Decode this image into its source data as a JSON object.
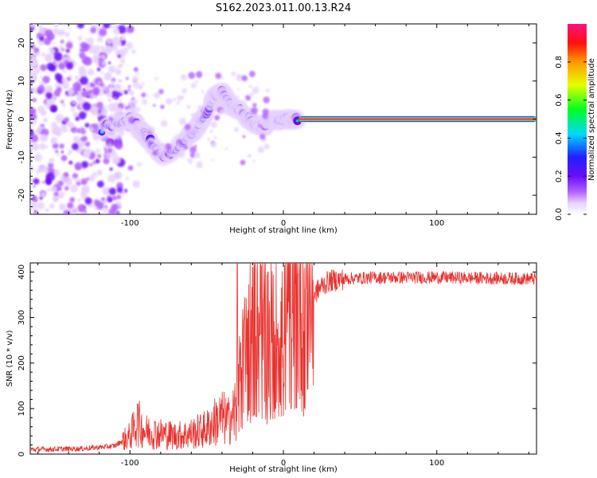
{
  "title": "S162.2023.011.00.13.R24",
  "colors": {
    "snr_line": "#e8322e",
    "colorbar": [
      "#ffffff",
      "#e6d2ff",
      "#b060ff",
      "#6a0dfa",
      "#2020ff",
      "#00d8ff",
      "#00ff20",
      "#e6ff00",
      "#ff9800",
      "#ff1010",
      "#ff1080"
    ]
  },
  "chart_data": [
    {
      "type": "heatmap",
      "xlabel": "Height of straight line (km)",
      "ylabel": "Frequency (Hz)",
      "xlim": [
        -165,
        165
      ],
      "ylim": [
        -25,
        25
      ],
      "x_ticks": [
        -100,
        0,
        100
      ],
      "y_ticks": [
        -20,
        -10,
        0,
        10,
        20
      ],
      "colorbar": {
        "label": "Normalized spectral amplitude",
        "range": [
          0.0,
          1.0
        ],
        "ticks": [
          0.0,
          0.2,
          0.4,
          0.6,
          0.8
        ]
      },
      "features": {
        "noise_region_x": [
          -165,
          -105
        ],
        "ridge_points": [
          [
            -120,
            -3
          ],
          [
            -110,
            -1
          ],
          [
            -100,
            0
          ],
          [
            -95,
            -2
          ],
          [
            -90,
            -4
          ],
          [
            -85,
            -7
          ],
          [
            -78,
            -10
          ],
          [
            -70,
            -8
          ],
          [
            -62,
            -5
          ],
          [
            -55,
            -1
          ],
          [
            -50,
            2
          ],
          [
            -45,
            6
          ],
          [
            -40,
            7
          ],
          [
            -35,
            4
          ],
          [
            -30,
            3
          ],
          [
            -25,
            1
          ],
          [
            -20,
            -1
          ],
          [
            -15,
            -2
          ],
          [
            -10,
            -1
          ],
          [
            -5,
            0
          ],
          [
            0,
            0
          ],
          [
            5,
            0
          ],
          [
            10,
            0
          ]
        ],
        "steady_tone": {
          "x": [
            10,
            165
          ],
          "frequency": 0
        }
      }
    },
    {
      "type": "line",
      "xlabel": "Height of straight line (km)",
      "ylabel": "SNR (10 * v/v)",
      "xlim": [
        -165,
        165
      ],
      "ylim": [
        0,
        420
      ],
      "x_ticks": [
        -100,
        0,
        100
      ],
      "y_ticks": [
        0,
        100,
        200,
        300,
        400
      ],
      "series": [
        {
          "envelope": [
            [
              -165,
              10
            ],
            [
              -130,
              12
            ],
            [
              -110,
              18
            ],
            [
              -100,
              40
            ],
            [
              -95,
              70
            ],
            [
              -90,
              50
            ],
            [
              -80,
              45
            ],
            [
              -70,
              40
            ],
            [
              -60,
              45
            ],
            [
              -50,
              55
            ],
            [
              -45,
              70
            ],
            [
              -40,
              80
            ],
            [
              -35,
              70
            ],
            [
              -30,
              120
            ],
            [
              -25,
              220
            ],
            [
              -20,
              280
            ],
            [
              -15,
              260
            ],
            [
              -10,
              250
            ],
            [
              -5,
              260
            ],
            [
              0,
              280
            ],
            [
              5,
              290
            ],
            [
              10,
              310
            ],
            [
              15,
              330
            ],
            [
              20,
              350
            ],
            [
              25,
              370
            ],
            [
              30,
              380
            ],
            [
              40,
              385
            ],
            [
              60,
              388
            ],
            [
              100,
              388
            ],
            [
              165,
              385
            ]
          ],
          "spikes": [
            [
              -95,
              110
            ],
            [
              -30,
              420
            ],
            [
              -20,
              410
            ],
            [
              -15,
              420
            ],
            [
              -10,
              400
            ],
            [
              10,
              395
            ],
            [
              -5,
              100
            ],
            [
              5,
              100
            ]
          ]
        }
      ]
    }
  ]
}
